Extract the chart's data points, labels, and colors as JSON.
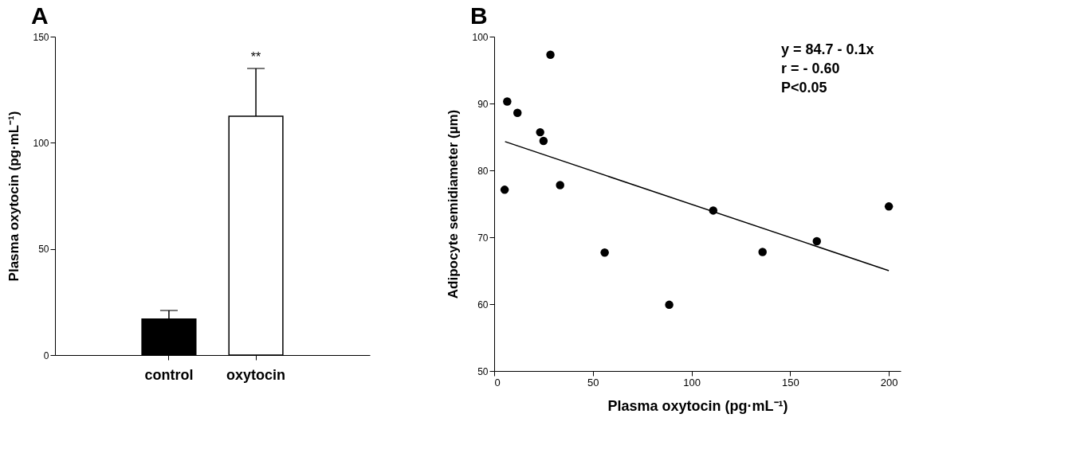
{
  "chart_data": [
    {
      "type": "bar",
      "title": "A",
      "ylabel": "Plasma  oxytocin (pg·mL⁻¹)",
      "categories": [
        "control",
        "oxytocin"
      ],
      "values": [
        17,
        112.5
      ],
      "colors": [
        "#000000",
        "#ffffff"
      ],
      "errors": [
        [
          17,
          21
        ],
        [
          112.5,
          135
        ]
      ],
      "ylim": [
        0,
        150
      ],
      "yticks": [
        0,
        50,
        100,
        150
      ],
      "grid": false,
      "annotations": [
        "**"
      ]
    },
    {
      "type": "scatter",
      "title": "B",
      "xlabel": "Plasma oxytocin (pg·mL⁻¹)",
      "ylabel": "Adipocyte semidiameter (µm)",
      "xlim": [
        0,
        206
      ],
      "xticks": [
        0,
        50,
        100,
        150,
        200
      ],
      "ylim": [
        50,
        100
      ],
      "yticks": [
        50,
        60,
        70,
        80,
        90,
        100
      ],
      "grid": false,
      "series": [
        {
          "type": "scatter",
          "marker": "circle",
          "color": "#000000",
          "x": [
            5.3,
            6.6,
            11.8,
            23.3,
            25.0,
            28.5,
            33.4,
            56.0,
            88.7,
            111.0,
            136.0,
            163.5,
            200
          ],
          "values": [
            77.1,
            90.3,
            88.6,
            85.7,
            84.4,
            97.3,
            77.8,
            67.7,
            59.9,
            74.0,
            67.8,
            69.4,
            74.6
          ]
        },
        {
          "type": "line",
          "color": "#000000",
          "x": [
            5.5,
            200
          ],
          "values": [
            84.3,
            65.0
          ]
        }
      ],
      "annotations": [
        "y = 84.7 - 0.1x",
        "r = - 0.60",
        "P<0.05"
      ]
    }
  ]
}
